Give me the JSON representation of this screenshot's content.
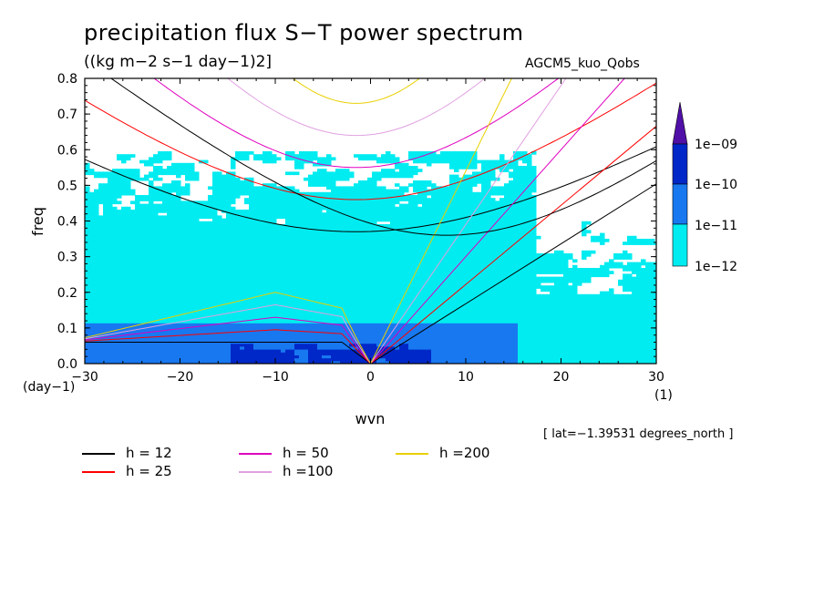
{
  "title": "precipitation flux S−T power spectrum",
  "units": "((kg m−2 s−1 day−1)2]",
  "model": "AGCM5_kuo_Qobs",
  "lat_note": "[ lat=−1.39531 degrees_north ]",
  "x_unit": "(day−1)",
  "x_unit_right": "(1)",
  "legend": [
    {
      "label": "h = 12",
      "color": "#000000"
    },
    {
      "label": "h = 25",
      "color": "#ff0000"
    },
    {
      "label": "h = 50",
      "color": "#e000c0"
    },
    {
      "label": "h =100",
      "color": "#e0a0e0"
    },
    {
      "label": "h =200",
      "color": "#e8d000"
    }
  ],
  "colorbar": {
    "labels": [
      "1e−09",
      "1e−10",
      "1e−11",
      "1e−12"
    ],
    "colors": [
      "#5010a8",
      "#0028c8",
      "#1878f0",
      "#00ecf0"
    ]
  },
  "chart_data": {
    "type": "heatmap",
    "title": "precipitation flux S−T power spectrum",
    "xlabel": "wvn",
    "ylabel": "freq",
    "xlim": [
      -30,
      30
    ],
    "ylim": [
      0,
      0.8
    ],
    "x_ticks": [
      "−30",
      "−20",
      "−10",
      "0",
      "10",
      "20",
      "30"
    ],
    "x_tick_values": [
      -30,
      -20,
      -10,
      0,
      10,
      20,
      30
    ],
    "y_ticks": [
      "0.0",
      "0.1",
      "0.2",
      "0.3",
      "0.4",
      "0.5",
      "0.6",
      "0.7",
      "0.8"
    ],
    "y_tick_values": [
      0,
      0.1,
      0.2,
      0.3,
      0.4,
      0.5,
      0.6,
      0.7,
      0.8
    ],
    "contour_levels": [
      1e-12,
      1e-11,
      1e-10,
      1e-09
    ],
    "regions": [
      {
        "level": "1e-12",
        "x_range": [
          -30,
          30
        ],
        "freq_range": [
          0,
          0.5
        ],
        "pattern": "patchy, densest at low freq"
      },
      {
        "level": "1e-11",
        "x_range": [
          -30,
          15
        ],
        "freq_range": [
          0,
          0.12
        ],
        "pattern": "patchy"
      },
      {
        "level": "1e-10",
        "x_range": [
          -15,
          5
        ],
        "freq_range": [
          0,
          0.05
        ],
        "pattern": "patchy"
      }
    ],
    "dispersion_curves": [
      {
        "h": 12,
        "color": "#000000"
      },
      {
        "h": 25,
        "color": "#ff0000"
      },
      {
        "h": 50,
        "color": "#e000c0"
      },
      {
        "h": 100,
        "color": "#e0a0e0"
      },
      {
        "h": 200,
        "color": "#e8d000"
      }
    ]
  }
}
